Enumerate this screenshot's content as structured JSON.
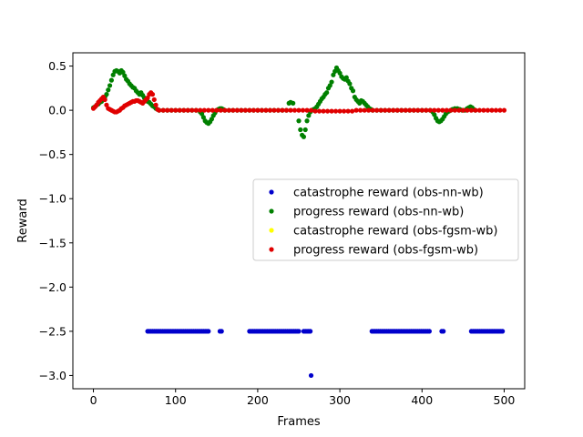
{
  "chart_data": {
    "type": "scatter",
    "title": "",
    "xlabel": "Frames",
    "ylabel": "Reward",
    "xlim": [
      -25,
      525
    ],
    "ylim": [
      -3.15,
      0.65
    ],
    "xticks": [
      0,
      100,
      200,
      300,
      400,
      500
    ],
    "xtick_labels": [
      "0",
      "100",
      "200",
      "300",
      "400",
      "500"
    ],
    "yticks": [
      0.5,
      0.0,
      -0.5,
      -1.0,
      -1.5,
      -2.0,
      -2.5,
      -3.0
    ],
    "ytick_labels": [
      "0.5",
      "0.0",
      "−0.5",
      "−1.0",
      "−1.5",
      "−2.0",
      "−2.5",
      "−3.0"
    ],
    "grid": false,
    "legend_position": "center-right",
    "series": [
      {
        "name": "catastrophe reward (obs-nn-wb)",
        "color": "#0000cc",
        "segments": [
          {
            "x": [
              66,
              140
            ],
            "y": -2.5,
            "step": 2
          },
          {
            "x": [
              154,
              156
            ],
            "y": -2.5,
            "step": 2
          },
          {
            "x": [
              190,
              250
            ],
            "y": -2.5,
            "step": 2
          },
          {
            "x": [
              256,
              264
            ],
            "y": -2.5,
            "step": 2
          },
          {
            "x": [
              339,
              409
            ],
            "y": -2.5,
            "step": 2
          },
          {
            "x": [
              424,
              426
            ],
            "y": -2.5,
            "step": 2
          },
          {
            "x": [
              460,
              498
            ],
            "y": -2.5,
            "step": 2
          }
        ],
        "points": [
          [
            265,
            -3.0
          ]
        ]
      },
      {
        "name": "progress reward (obs-nn-wb)",
        "color": "#008000",
        "points": [
          [
            0,
            0.03
          ],
          [
            2,
            0.04
          ],
          [
            4,
            0.06
          ],
          [
            6,
            0.07
          ],
          [
            8,
            0.09
          ],
          [
            10,
            0.1
          ],
          [
            12,
            0.12
          ],
          [
            14,
            0.15
          ],
          [
            16,
            0.18
          ],
          [
            18,
            0.23
          ],
          [
            20,
            0.28
          ],
          [
            22,
            0.34
          ],
          [
            24,
            0.4
          ],
          [
            26,
            0.44
          ],
          [
            28,
            0.45
          ],
          [
            30,
            0.44
          ],
          [
            32,
            0.42
          ],
          [
            34,
            0.45
          ],
          [
            36,
            0.43
          ],
          [
            38,
            0.39
          ],
          [
            40,
            0.35
          ],
          [
            42,
            0.33
          ],
          [
            44,
            0.3
          ],
          [
            46,
            0.28
          ],
          [
            48,
            0.26
          ],
          [
            50,
            0.25
          ],
          [
            52,
            0.22
          ],
          [
            54,
            0.2
          ],
          [
            56,
            0.18
          ],
          [
            58,
            0.2
          ],
          [
            60,
            0.17
          ],
          [
            62,
            0.14
          ],
          [
            64,
            0.12
          ],
          [
            66,
            0.1
          ],
          [
            68,
            0.09
          ],
          [
            70,
            0.07
          ],
          [
            72,
            0.05
          ],
          [
            74,
            0.04
          ],
          [
            76,
            0.02
          ],
          [
            78,
            0.01
          ],
          [
            80,
            0.0
          ],
          [
            85,
            0.0
          ],
          [
            90,
            0.0
          ],
          [
            95,
            0.0
          ],
          [
            100,
            0.0
          ],
          [
            105,
            0.0
          ],
          [
            110,
            0.0
          ],
          [
            115,
            0.0
          ],
          [
            120,
            0.0
          ],
          [
            125,
            0.0
          ],
          [
            130,
            -0.02
          ],
          [
            132,
            -0.04
          ],
          [
            134,
            -0.08
          ],
          [
            136,
            -0.12
          ],
          [
            138,
            -0.14
          ],
          [
            140,
            -0.15
          ],
          [
            142,
            -0.13
          ],
          [
            144,
            -0.1
          ],
          [
            146,
            -0.06
          ],
          [
            148,
            -0.03
          ],
          [
            150,
            0.0
          ],
          [
            152,
            0.01
          ],
          [
            154,
            0.02
          ],
          [
            156,
            0.02
          ],
          [
            158,
            0.01
          ],
          [
            160,
            0.0
          ],
          [
            165,
            0.0
          ],
          [
            170,
            0.0
          ],
          [
            175,
            0.0
          ],
          [
            180,
            0.0
          ],
          [
            185,
            0.0
          ],
          [
            190,
            0.0
          ],
          [
            195,
            0.0
          ],
          [
            200,
            0.0
          ],
          [
            205,
            0.0
          ],
          [
            210,
            0.0
          ],
          [
            215,
            0.0
          ],
          [
            220,
            0.0
          ],
          [
            225,
            0.0
          ],
          [
            230,
            0.0
          ],
          [
            235,
            0.0
          ],
          [
            238,
            0.08
          ],
          [
            240,
            0.09
          ],
          [
            243,
            0.08
          ],
          [
            250,
            -0.12
          ],
          [
            252,
            -0.22
          ],
          [
            254,
            -0.28
          ],
          [
            256,
            -0.3
          ],
          [
            258,
            -0.22
          ],
          [
            260,
            -0.12
          ],
          [
            262,
            -0.06
          ],
          [
            264,
            -0.02
          ],
          [
            266,
            0.0
          ],
          [
            268,
            0.01
          ],
          [
            270,
            0.02
          ],
          [
            272,
            0.04
          ],
          [
            274,
            0.07
          ],
          [
            276,
            0.1
          ],
          [
            278,
            0.13
          ],
          [
            280,
            0.15
          ],
          [
            282,
            0.18
          ],
          [
            284,
            0.2
          ],
          [
            286,
            0.25
          ],
          [
            288,
            0.28
          ],
          [
            290,
            0.32
          ],
          [
            292,
            0.4
          ],
          [
            294,
            0.44
          ],
          [
            296,
            0.48
          ],
          [
            298,
            0.45
          ],
          [
            300,
            0.42
          ],
          [
            302,
            0.38
          ],
          [
            304,
            0.36
          ],
          [
            306,
            0.35
          ],
          [
            308,
            0.37
          ],
          [
            310,
            0.33
          ],
          [
            312,
            0.3
          ],
          [
            314,
            0.25
          ],
          [
            316,
            0.22
          ],
          [
            318,
            0.15
          ],
          [
            320,
            0.12
          ],
          [
            322,
            0.1
          ],
          [
            324,
            0.08
          ],
          [
            326,
            0.11
          ],
          [
            328,
            0.1
          ],
          [
            330,
            0.08
          ],
          [
            332,
            0.06
          ],
          [
            334,
            0.04
          ],
          [
            336,
            0.02
          ],
          [
            338,
            0.01
          ],
          [
            340,
            0.0
          ],
          [
            345,
            0.0
          ],
          [
            350,
            0.0
          ],
          [
            355,
            0.0
          ],
          [
            360,
            0.0
          ],
          [
            365,
            0.0
          ],
          [
            370,
            0.0
          ],
          [
            375,
            0.0
          ],
          [
            380,
            0.0
          ],
          [
            385,
            0.0
          ],
          [
            390,
            0.0
          ],
          [
            395,
            0.0
          ],
          [
            400,
            0.0
          ],
          [
            405,
            0.0
          ],
          [
            410,
            0.0
          ],
          [
            413,
            -0.02
          ],
          [
            415,
            -0.05
          ],
          [
            417,
            -0.09
          ],
          [
            419,
            -0.12
          ],
          [
            421,
            -0.13
          ],
          [
            423,
            -0.12
          ],
          [
            425,
            -0.1
          ],
          [
            427,
            -0.07
          ],
          [
            429,
            -0.04
          ],
          [
            431,
            -0.02
          ],
          [
            433,
            -0.01
          ],
          [
            435,
            0.0
          ],
          [
            437,
            0.01
          ],
          [
            440,
            0.02
          ],
          [
            443,
            0.02
          ],
          [
            446,
            0.01
          ],
          [
            449,
            0.0
          ],
          [
            452,
            0.0
          ],
          [
            455,
            0.02
          ],
          [
            457,
            0.03
          ],
          [
            459,
            0.04
          ],
          [
            461,
            0.03
          ],
          [
            463,
            0.01
          ],
          [
            465,
            0.0
          ]
        ]
      },
      {
        "name": "catastrophe reward (obs-fgsm-wb)",
        "color": "#ffff00",
        "points": []
      },
      {
        "name": "progress reward (obs-fgsm-wb)",
        "color": "#e00000",
        "points": [
          [
            0,
            0.02
          ],
          [
            2,
            0.04
          ],
          [
            4,
            0.06
          ],
          [
            6,
            0.09
          ],
          [
            8,
            0.11
          ],
          [
            10,
            0.13
          ],
          [
            12,
            0.15
          ],
          [
            14,
            0.12
          ],
          [
            16,
            0.06
          ],
          [
            18,
            0.02
          ],
          [
            20,
            0.01
          ],
          [
            22,
            0.0
          ],
          [
            24,
            -0.01
          ],
          [
            26,
            -0.02
          ],
          [
            28,
            -0.02
          ],
          [
            30,
            -0.01
          ],
          [
            32,
            0.0
          ],
          [
            34,
            0.02
          ],
          [
            36,
            0.03
          ],
          [
            38,
            0.05
          ],
          [
            40,
            0.06
          ],
          [
            42,
            0.07
          ],
          [
            44,
            0.08
          ],
          [
            46,
            0.09
          ],
          [
            48,
            0.1
          ],
          [
            50,
            0.1
          ],
          [
            52,
            0.11
          ],
          [
            54,
            0.11
          ],
          [
            56,
            0.1
          ],
          [
            58,
            0.09
          ],
          [
            60,
            0.08
          ],
          [
            62,
            0.1
          ],
          [
            64,
            0.12
          ],
          [
            66,
            0.14
          ],
          [
            68,
            0.18
          ],
          [
            70,
            0.2
          ],
          [
            72,
            0.18
          ],
          [
            74,
            0.12
          ],
          [
            76,
            0.06
          ],
          [
            78,
            0.01
          ],
          [
            80,
            0.0
          ],
          [
            85,
            0.0
          ],
          [
            90,
            0.0
          ],
          [
            95,
            0.0
          ],
          [
            100,
            0.0
          ],
          [
            105,
            0.0
          ],
          [
            110,
            0.0
          ],
          [
            115,
            0.0
          ],
          [
            120,
            0.0
          ],
          [
            125,
            0.0
          ],
          [
            130,
            0.0
          ],
          [
            135,
            0.0
          ],
          [
            140,
            0.0
          ],
          [
            145,
            0.0
          ],
          [
            150,
            0.0
          ],
          [
            155,
            0.0
          ],
          [
            160,
            0.0
          ],
          [
            165,
            0.0
          ],
          [
            170,
            0.0
          ],
          [
            175,
            0.0
          ],
          [
            180,
            0.0
          ],
          [
            185,
            0.0
          ],
          [
            190,
            0.0
          ],
          [
            195,
            0.0
          ],
          [
            200,
            0.0
          ],
          [
            205,
            0.0
          ],
          [
            210,
            0.0
          ],
          [
            215,
            0.0
          ],
          [
            220,
            0.0
          ],
          [
            225,
            0.0
          ],
          [
            230,
            0.0
          ],
          [
            235,
            0.0
          ],
          [
            240,
            0.0
          ],
          [
            245,
            0.0
          ],
          [
            250,
            0.0
          ],
          [
            255,
            0.0
          ],
          [
            260,
            0.0
          ],
          [
            265,
            0.0
          ],
          [
            270,
            -0.01
          ],
          [
            275,
            -0.01
          ],
          [
            280,
            -0.01
          ],
          [
            285,
            -0.01
          ],
          [
            290,
            -0.01
          ],
          [
            295,
            -0.01
          ],
          [
            300,
            -0.01
          ],
          [
            305,
            -0.01
          ],
          [
            310,
            -0.01
          ],
          [
            315,
            -0.01
          ],
          [
            320,
            0.0
          ],
          [
            325,
            0.0
          ],
          [
            330,
            0.0
          ],
          [
            335,
            0.0
          ],
          [
            340,
            0.0
          ],
          [
            345,
            0.0
          ],
          [
            350,
            0.0
          ],
          [
            355,
            0.0
          ],
          [
            360,
            0.0
          ],
          [
            365,
            0.0
          ],
          [
            370,
            0.0
          ],
          [
            375,
            0.0
          ],
          [
            380,
            0.0
          ],
          [
            385,
            0.0
          ],
          [
            390,
            0.0
          ],
          [
            395,
            0.0
          ],
          [
            400,
            0.0
          ],
          [
            405,
            0.0
          ],
          [
            410,
            0.0
          ],
          [
            415,
            0.0
          ],
          [
            420,
            0.0
          ],
          [
            425,
            0.0
          ],
          [
            430,
            0.0
          ],
          [
            435,
            0.0
          ],
          [
            440,
            0.0
          ],
          [
            445,
            0.0
          ],
          [
            450,
            0.0
          ],
          [
            455,
            0.0
          ],
          [
            460,
            0.0
          ],
          [
            465,
            0.0
          ],
          [
            470,
            0.0
          ],
          [
            475,
            0.0
          ],
          [
            480,
            0.0
          ],
          [
            485,
            0.0
          ],
          [
            490,
            0.0
          ],
          [
            495,
            0.0
          ],
          [
            500,
            0.0
          ]
        ]
      }
    ]
  }
}
